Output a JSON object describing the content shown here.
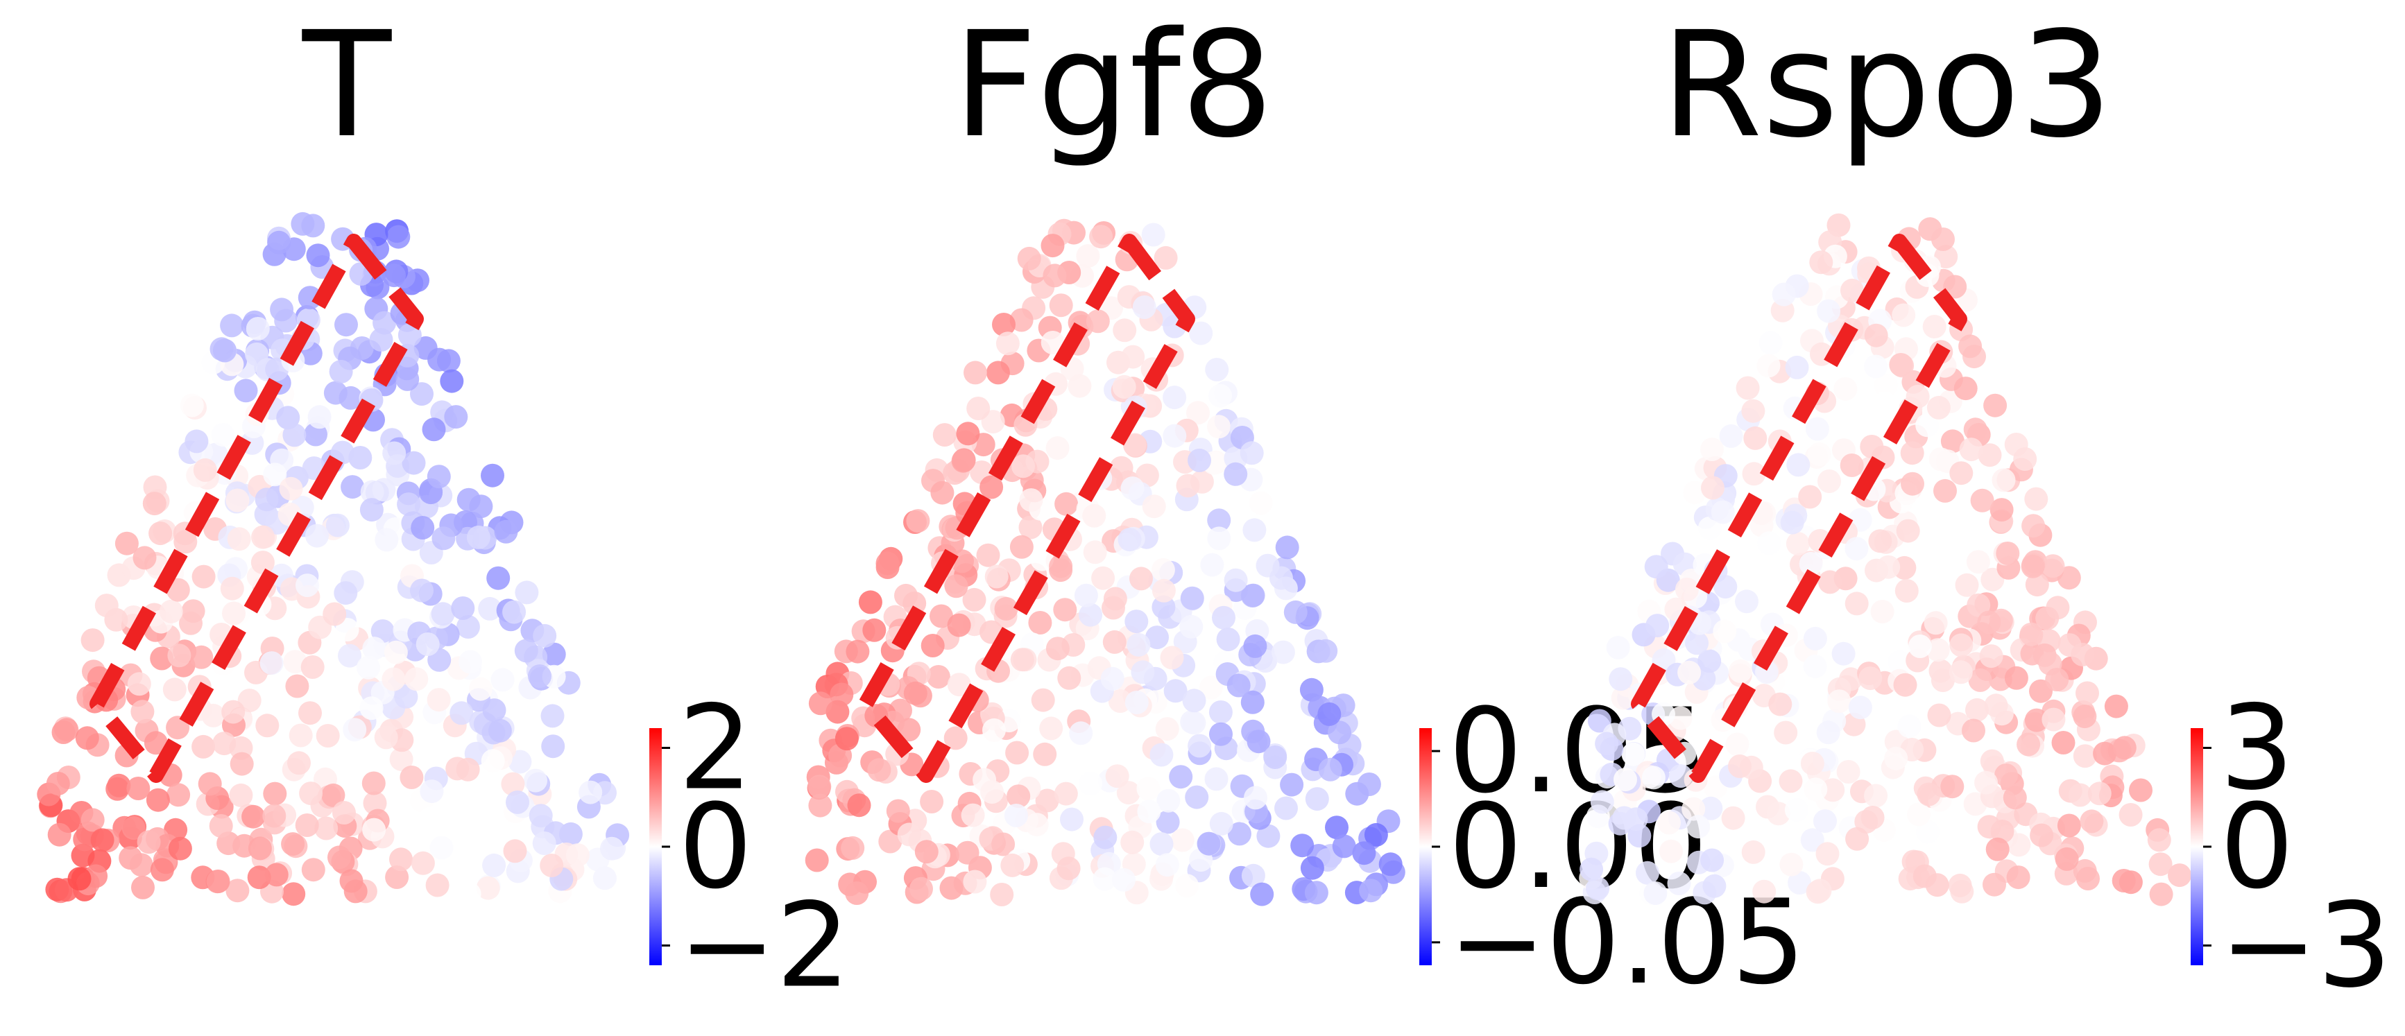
{
  "chart_data": [
    {
      "type": "scatter",
      "title": "T",
      "colormap": [
        "#0000ff",
        "#ffffff",
        "#ff0000"
      ],
      "colorbar": {
        "range": [
          -2.4,
          2.4
        ],
        "ticks": [
          {
            "value": 2,
            "label": "2"
          },
          {
            "value": 0,
            "label": "0"
          },
          {
            "value": -2,
            "label": "−2"
          }
        ]
      },
      "highlight_box_color": "#ee2222",
      "gradient": {
        "low_corner": "right",
        "high_corner": "bottom-left"
      }
    },
    {
      "type": "scatter",
      "title": "Fgf8",
      "colormap": [
        "#0000ff",
        "#ffffff",
        "#ff0000"
      ],
      "colorbar": {
        "range": [
          -0.062,
          0.062
        ],
        "ticks": [
          {
            "value": 0.05,
            "label": "0.05"
          },
          {
            "value": 0.0,
            "label": "0.00"
          },
          {
            "value": -0.05,
            "label": "−0.05"
          }
        ]
      },
      "highlight_box_color": "#ee2222",
      "gradient": {
        "low_corner": "bottom-right",
        "high_corner": "left"
      }
    },
    {
      "type": "scatter",
      "title": "Rspo3",
      "colormap": [
        "#0000ff",
        "#ffffff",
        "#ff0000"
      ],
      "colorbar": {
        "range": [
          -3.6,
          3.6
        ],
        "ticks": [
          {
            "value": 3,
            "label": "3"
          },
          {
            "value": 0,
            "label": "0"
          },
          {
            "value": -3,
            "label": "−3"
          }
        ]
      },
      "highlight_box_color": "#ee2222",
      "gradient": {
        "low_corner": "left",
        "high_corner": "right"
      }
    }
  ]
}
